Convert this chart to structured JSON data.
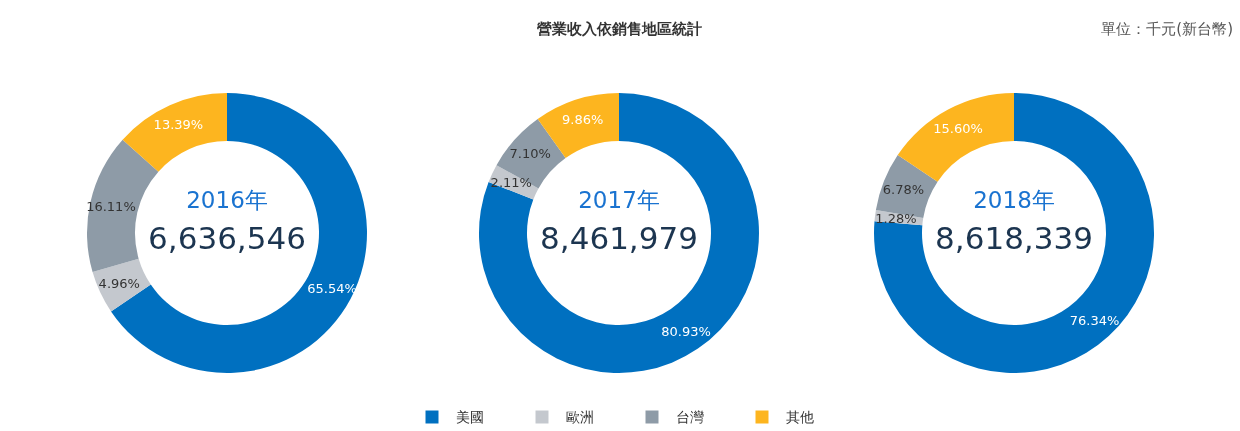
{
  "chart_data": [
    {
      "type": "donut",
      "categories": [
        null,
        null,
        null,
        null
      ],
      "values": [
        65.54,
        4.96,
        16.11,
        13.39
      ],
      "colors": [
        "#0070c0",
        "#c4c8ce",
        "#8e9ba7",
        "#fdb51f"
      ],
      "value_labels": [
        "65.54%",
        "4.96%",
        "16.11%",
        "13.39%"
      ],
      "annotations": [
        "2016年",
        "6,636,546"
      ],
      "legend": false
    },
    {
      "type": "donut",
      "title": "營業收入依銷售地區統計",
      "categories": [
        "美國",
        "歐洲",
        "台灣",
        "其他"
      ],
      "values": [
        80.93,
        2.11,
        7.1,
        9.86
      ],
      "colors": [
        "#0070c0",
        "#c4c8ce",
        "#8e9ba7",
        "#fdb51f"
      ],
      "value_labels": [
        "80.93%",
        "2.11%",
        "7.10%",
        "9.86%"
      ],
      "annotations": [
        "2017年",
        "8,461,979"
      ],
      "legend": "bottom"
    },
    {
      "type": "donut",
      "subtitle": "單位：千元(新台幣)",
      "categories": [
        null,
        null,
        null,
        null
      ],
      "values": [
        76.34,
        1.28,
        6.78,
        15.6
      ],
      "colors": [
        "#0070c0",
        "#c4c8ce",
        "#8e9ba7",
        "#fdb51f"
      ],
      "value_labels": [
        "76.34%",
        "1.28%",
        "6.78%",
        "15.60%"
      ],
      "annotations": [
        "2018年",
        "8,618,339"
      ],
      "legend": false
    }
  ]
}
